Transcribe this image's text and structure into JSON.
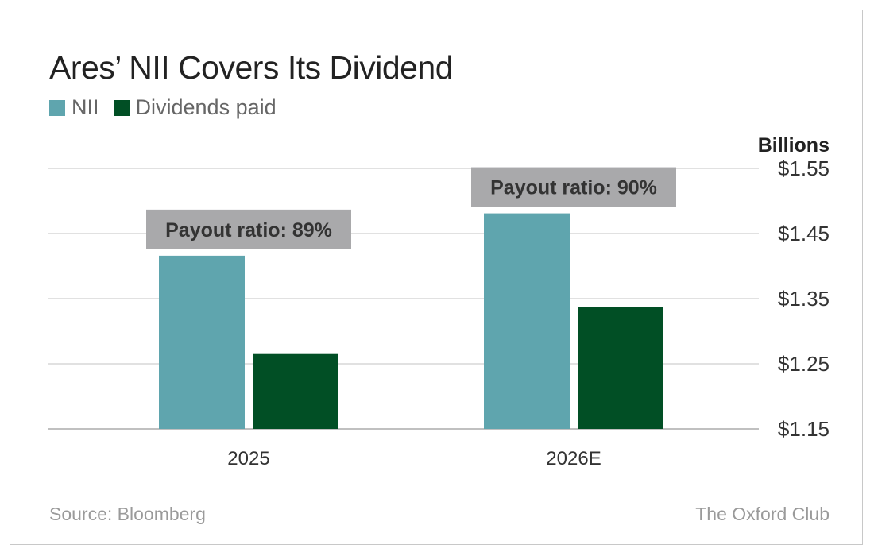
{
  "title": "Ares’ NII Covers Its Dividend",
  "legend": [
    {
      "label": "NII",
      "color": "#5fa5ae"
    },
    {
      "label": "Dividends paid",
      "color": "#014f25"
    }
  ],
  "source": "Source: Bloomberg",
  "brand": "The Oxford Club",
  "chart_data": {
    "type": "bar",
    "categories": [
      "2025",
      "2026E"
    ],
    "series": [
      {
        "name": "NII",
        "color": "#5fa5ae",
        "values": [
          1.416,
          1.481
        ]
      },
      {
        "name": "Dividends paid",
        "color": "#014f25",
        "values": [
          1.265,
          1.337
        ]
      }
    ],
    "ylabel": "Billions",
    "ylim": [
      1.15,
      1.55
    ],
    "yticks": [
      1.55,
      1.45,
      1.35,
      1.25,
      1.15
    ],
    "ytick_labels": [
      "$1.55",
      "$1.45",
      "$1.35",
      "$1.25",
      "$1.15"
    ],
    "annotations": [
      "Payout ratio: 89%",
      "Payout ratio: 90%"
    ],
    "annotation_color": "#a9a9ab",
    "grid": true,
    "legend_position": "top-left"
  }
}
